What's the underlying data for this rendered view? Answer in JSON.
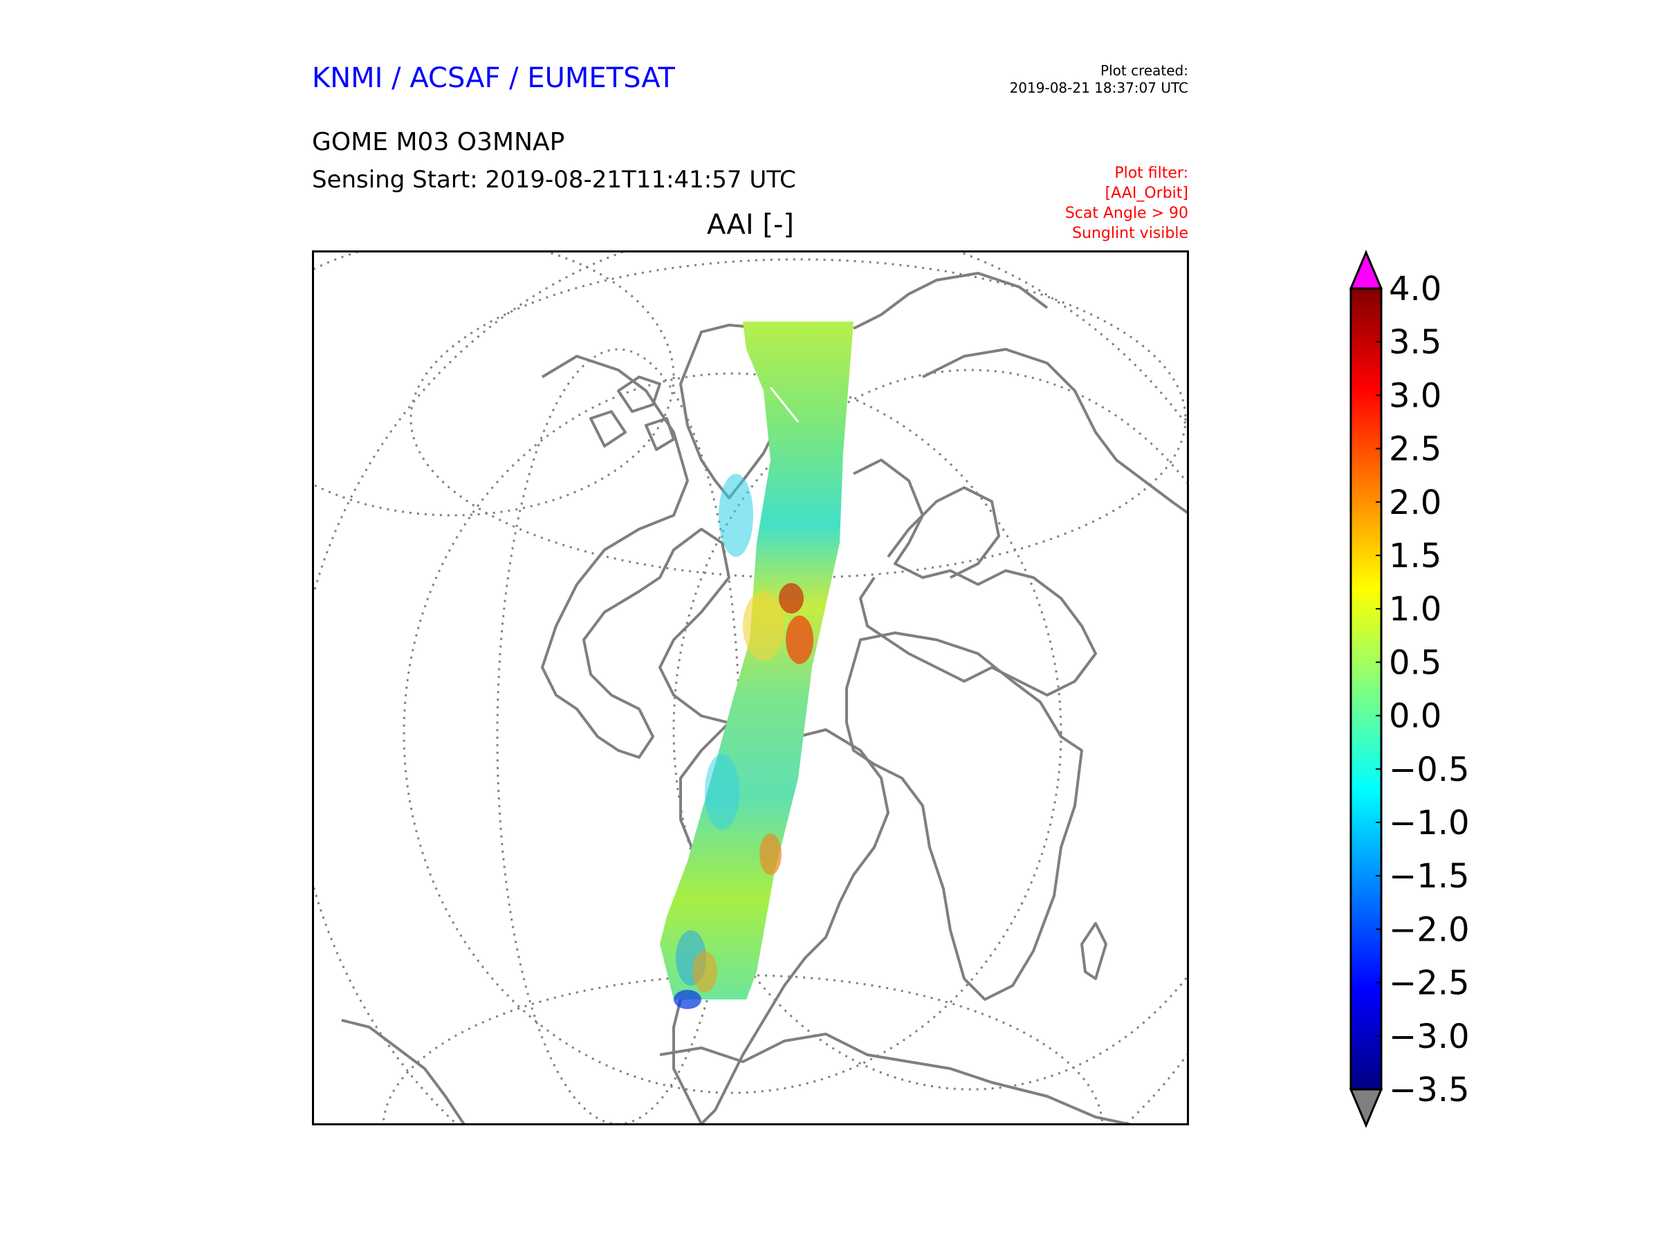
{
  "header": {
    "organization": "KNMI / ACSAF / EUMETSAT",
    "plot_created_label": "Plot created:",
    "plot_created_time": "2019-08-21 18:37:07 UTC",
    "product": "GOME M03 O3MNAP",
    "sensing_start": "Sensing Start: 2019-08-21T11:41:57 UTC",
    "variable_title": "AAI [-]"
  },
  "plot_filter": {
    "label": "Plot filter:",
    "lines": [
      "[AAI_Orbit]",
      "Scat Angle > 90",
      "Sunglint visible"
    ]
  },
  "colorbar": {
    "min": -3.5,
    "max": 4.0,
    "ticks": [
      "4.0",
      "3.5",
      "3.0",
      "2.5",
      "2.0",
      "1.5",
      "1.0",
      "0.5",
      "0.0",
      "−0.5",
      "−1.0",
      "−1.5",
      "−2.0",
      "−2.5",
      "−3.0",
      "−3.5"
    ],
    "tick_values": [
      4.0,
      3.5,
      3.0,
      2.5,
      2.0,
      1.5,
      1.0,
      0.5,
      0.0,
      -0.5,
      -1.0,
      -1.5,
      -2.0,
      -2.5,
      -3.0,
      -3.5
    ],
    "colors": [
      "#800000",
      "#ff0000",
      "#ff8000",
      "#ffff00",
      "#80ff80",
      "#00ffff",
      "#0080ff",
      "#0000ff",
      "#000080"
    ],
    "over_color": "#ff00ff",
    "under_color": "#808080"
  },
  "map": {
    "coastline_color": "#7f7f7f",
    "gridline_color": "#7f7f7f",
    "swath_colors": [
      "#a8ee44",
      "#7ee76b",
      "#40e8c8",
      "#e6e33c",
      "#e85a18"
    ]
  }
}
